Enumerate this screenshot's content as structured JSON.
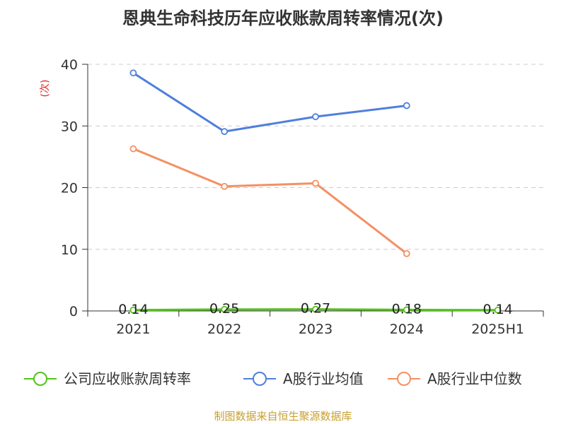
{
  "chart_data": {
    "type": "line",
    "title": "恩典生命科技历年应收账款周转率情况(次)",
    "ylabel": "(次)",
    "categories": [
      "2021",
      "2022",
      "2023",
      "2024",
      "2025H1"
    ],
    "ylim": [
      0,
      40
    ],
    "yticks": [
      0,
      10,
      20,
      30,
      40
    ],
    "grid": true,
    "legend_position": "bottom",
    "series": [
      {
        "name": "公司应收账款周转率",
        "color": "#52c41a",
        "values": [
          0.14,
          0.25,
          0.27,
          0.18,
          0.14
        ],
        "labels": [
          "0.14",
          "0.25",
          "0.27",
          "0.18",
          "0.14"
        ]
      },
      {
        "name": "A股行业均值",
        "color": "#4f7fdc",
        "values": [
          38.6,
          29.1,
          31.5,
          33.3,
          null
        ]
      },
      {
        "name": "A股行业中位数",
        "color": "#f49063",
        "values": [
          26.3,
          20.2,
          20.7,
          9.3,
          null
        ]
      }
    ]
  },
  "source": "制图数据来自恒生聚源数据库"
}
